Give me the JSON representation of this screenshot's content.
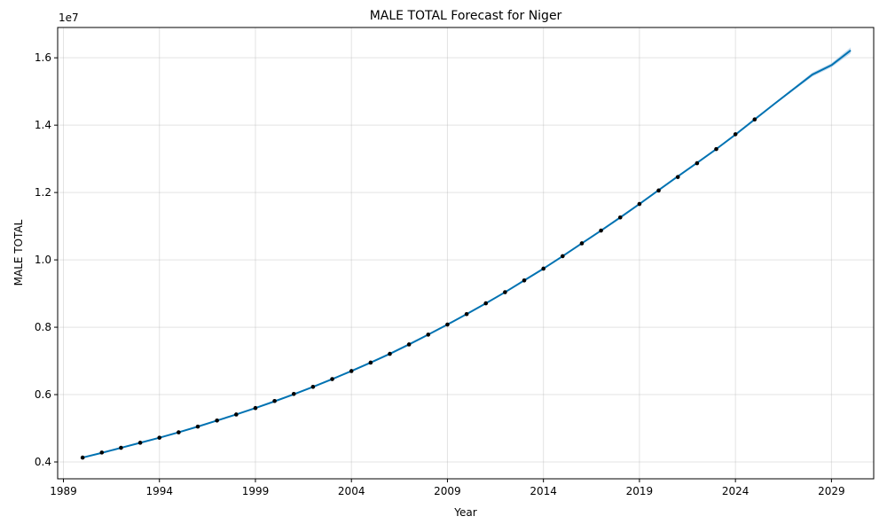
{
  "chart_data": {
    "type": "line",
    "title": "MALE TOTAL Forecast for Niger",
    "xlabel": "Year",
    "ylabel": "MALE TOTAL",
    "y_offset_label": "1e7",
    "xlim": [
      1988.7,
      2031.2
    ],
    "ylim": [
      3500000,
      16900000
    ],
    "x_ticks": [
      1989,
      1994,
      1999,
      2004,
      2009,
      2014,
      2019,
      2024,
      2029
    ],
    "y_ticks": [
      4000000,
      6000000,
      8000000,
      10000000,
      12000000,
      14000000,
      16000000
    ],
    "y_tick_labels": [
      "0.4",
      "0.6",
      "0.8",
      "1.0",
      "1.2",
      "1.4",
      "1.6"
    ],
    "grid": true,
    "line_color": "#0072B2",
    "band_color": "#9fc7e6",
    "point_color": "#000000",
    "observed": {
      "x": [
        1990,
        1991,
        1992,
        1993,
        1994,
        1995,
        1996,
        1997,
        1998,
        1999,
        2000,
        2001,
        2002,
        2003,
        2004,
        2005,
        2006,
        2007,
        2008,
        2009,
        2010,
        2011,
        2012,
        2013,
        2014,
        2015,
        2016,
        2017,
        2018,
        2019,
        2020,
        2021,
        2022,
        2023,
        2024,
        2025
      ],
      "y": [
        4130000,
        4280000,
        4420000,
        4570000,
        4720000,
        4880000,
        5050000,
        5230000,
        5410000,
        5600000,
        5810000,
        6020000,
        6230000,
        6460000,
        6700000,
        6950000,
        7210000,
        7490000,
        7780000,
        8080000,
        8390000,
        8710000,
        9040000,
        9390000,
        9740000,
        10110000,
        10490000,
        10870000,
        11260000,
        11660000,
        12060000,
        12460000,
        12870000,
        13290000,
        13730000,
        14170000
      ]
    },
    "forecast": {
      "x": [
        1990,
        1991,
        1992,
        1993,
        1994,
        1995,
        1996,
        1997,
        1998,
        1999,
        2000,
        2001,
        2002,
        2003,
        2004,
        2005,
        2006,
        2007,
        2008,
        2009,
        2010,
        2011,
        2012,
        2013,
        2014,
        2015,
        2016,
        2017,
        2018,
        2019,
        2020,
        2021,
        2022,
        2023,
        2024,
        2025,
        2026,
        2027,
        2028,
        2029,
        2030
      ],
      "y": [
        4130000,
        4270000,
        4420000,
        4570000,
        4720000,
        4880000,
        5050000,
        5230000,
        5410000,
        5600000,
        5800000,
        6010000,
        6230000,
        6460000,
        6700000,
        6950000,
        7210000,
        7490000,
        7780000,
        8080000,
        8390000,
        8710000,
        9040000,
        9390000,
        9740000,
        10110000,
        10490000,
        10870000,
        11260000,
        11660000,
        12070000,
        12480000,
        12880000,
        13290000,
        13720000,
        14170000,
        14620000,
        15060000,
        15500000,
        15780000,
        16220000
      ],
      "lower": [
        4120000,
        4260000,
        4410000,
        4560000,
        4710000,
        4870000,
        5040000,
        5220000,
        5400000,
        5590000,
        5790000,
        6000000,
        6220000,
        6450000,
        6690000,
        6940000,
        7200000,
        7480000,
        7770000,
        8070000,
        8380000,
        8700000,
        9030000,
        9380000,
        9730000,
        10100000,
        10480000,
        10860000,
        11250000,
        11650000,
        12060000,
        12470000,
        12870000,
        13280000,
        13710000,
        14160000,
        14590000,
        15020000,
        15440000,
        15720000,
        16130000
      ],
      "upper": [
        4140000,
        4280000,
        4430000,
        4580000,
        4730000,
        4890000,
        5060000,
        5240000,
        5420000,
        5610000,
        5810000,
        6020000,
        6240000,
        6470000,
        6710000,
        6960000,
        7220000,
        7500000,
        7790000,
        8090000,
        8400000,
        8720000,
        9050000,
        9400000,
        9750000,
        10120000,
        10500000,
        10880000,
        11270000,
        11670000,
        12080000,
        12490000,
        12890000,
        13300000,
        13730000,
        14180000,
        14650000,
        15100000,
        15560000,
        15840000,
        16310000
      ]
    }
  }
}
